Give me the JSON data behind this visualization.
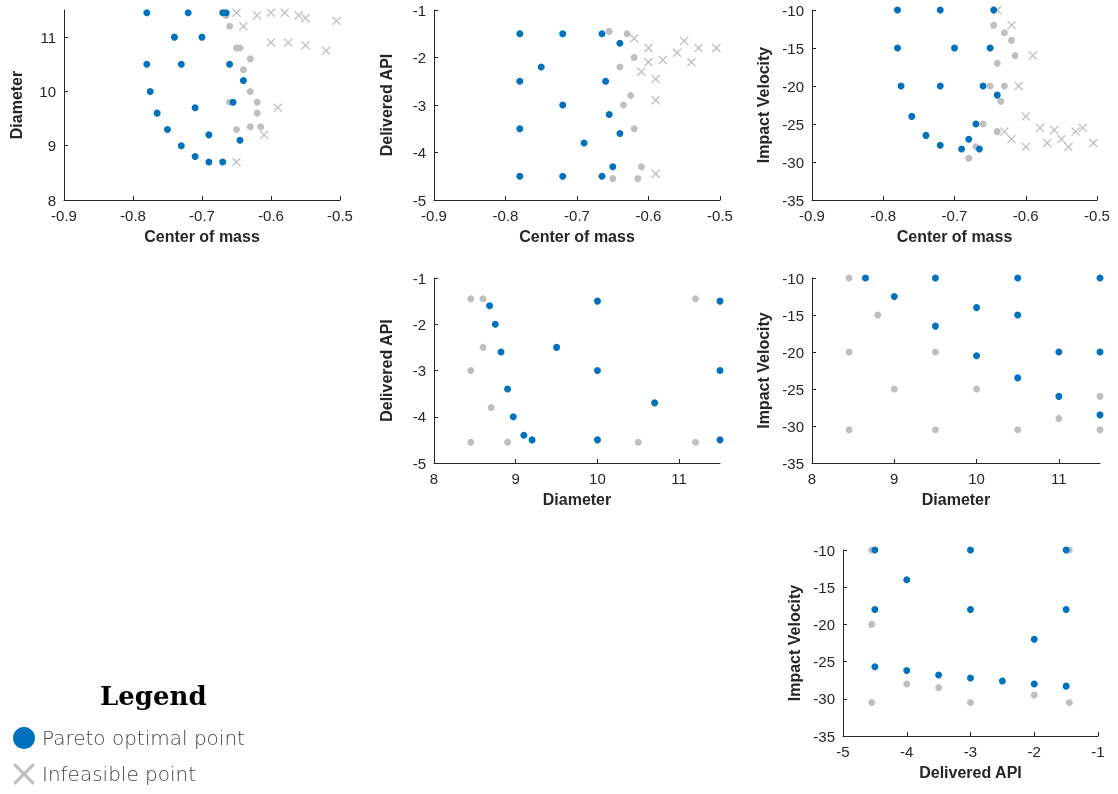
{
  "chart_data": [
    {
      "type": "scatter",
      "xlabel": "Center of mass",
      "ylabel": "Diameter",
      "xlim": [
        -0.9,
        -0.5
      ],
      "xticks": [
        -0.9,
        -0.8,
        -0.7,
        -0.6,
        -0.5
      ],
      "ylim": [
        8,
        11.5
      ],
      "yticks": [
        8,
        9,
        10,
        11
      ],
      "legend": "bottom left",
      "legend_title": "Legend",
      "series": [
        {
          "color": "#bfbfbf",
          "marker": "circle",
          "x": [
            -0.665,
            -0.66,
            -0.65,
            -0.64,
            -0.63,
            -0.62,
            -0.615,
            -0.63,
            -0.65,
            -0.66,
            -0.645,
            -0.63,
            -0.62
          ],
          "values": [
            11.4,
            11.2,
            10.8,
            10.4,
            10,
            9.6,
            9.35,
            9.35,
            9.3,
            9.8,
            10.8,
            10.6,
            9.8
          ]
        },
        {
          "name": "Infeasible point",
          "color": "#bfbfbf",
          "marker": "cross",
          "x": [
            -0.65,
            -0.62,
            -0.6,
            -0.58,
            -0.56,
            -0.55,
            -0.505,
            -0.52,
            -0.55,
            -0.575,
            -0.59,
            -0.6,
            -0.64,
            -0.65,
            -0.61
          ],
          "values": [
            11.45,
            11.4,
            11.45,
            11.45,
            11.4,
            11.35,
            11.3,
            10.75,
            10.85,
            10.9,
            9.7,
            10.9,
            11.2,
            8.7,
            9.2
          ]
        },
        {
          "name": "Pareto optimal point",
          "color": "#0072bd",
          "marker": "circle",
          "x": [
            -0.78,
            -0.72,
            -0.67,
            -0.78,
            -0.775,
            -0.765,
            -0.75,
            -0.73,
            -0.71,
            -0.69,
            -0.67,
            -0.66,
            -0.655,
            -0.645,
            -0.64,
            -0.73,
            -0.71,
            -0.74,
            -0.7,
            -0.69,
            -0.665
          ],
          "values": [
            11.45,
            11.45,
            11.45,
            10.5,
            10,
            9.6,
            9.3,
            9,
            8.8,
            8.7,
            8.7,
            10.5,
            9.8,
            9.1,
            10.2,
            10.5,
            9.7,
            11,
            11,
            9.2,
            11.45
          ]
        }
      ]
    },
    {
      "type": "scatter",
      "xlabel": "Center of mass",
      "ylabel": "Delivered API",
      "xlim": [
        -0.9,
        -0.5
      ],
      "xticks": [
        -0.9,
        -0.8,
        -0.7,
        -0.6,
        -0.5
      ],
      "ylim": [
        -5,
        -1
      ],
      "yticks": [
        -5,
        -4,
        -3,
        -2,
        -1
      ],
      "series": [
        {
          "color": "#bfbfbf",
          "marker": "circle",
          "x": [
            -0.655,
            -0.63,
            -0.62,
            -0.625,
            -0.62,
            -0.61,
            -0.615,
            -0.65,
            -0.635,
            -0.64
          ],
          "values": [
            -1.45,
            -1.5,
            -2,
            -2.8,
            -3.5,
            -4.3,
            -4.55,
            -4.55,
            -3,
            -2.2
          ]
        },
        {
          "color": "#bfbfbf",
          "marker": "cross",
          "x": [
            -0.62,
            -0.6,
            -0.58,
            -0.56,
            -0.55,
            -0.53,
            -0.505,
            -0.54,
            -0.59,
            -0.59,
            -0.59,
            -0.61,
            -0.6
          ],
          "values": [
            -1.6,
            -1.8,
            -2.05,
            -1.9,
            -1.65,
            -1.8,
            -1.8,
            -2.1,
            -2.45,
            -2.9,
            -4.45,
            -2.3,
            -2.1
          ]
        },
        {
          "color": "#0072bd",
          "marker": "circle",
          "x": [
            -0.78,
            -0.78,
            -0.78,
            -0.78,
            -0.72,
            -0.72,
            -0.665,
            -0.665,
            -0.66,
            -0.655,
            -0.65,
            -0.64,
            -0.64,
            -0.72,
            -0.75,
            -0.69
          ],
          "values": [
            -1.5,
            -2.5,
            -3.5,
            -4.5,
            -1.5,
            -4.5,
            -1.5,
            -4.5,
            -2.5,
            -3.2,
            -4.3,
            -1.7,
            -3.6,
            -3,
            -2.2,
            -3.8
          ]
        }
      ]
    },
    {
      "type": "scatter",
      "xlabel": "Center of mass",
      "ylabel": "Impact Velocity",
      "xlim": [
        -0.9,
        -0.5
      ],
      "xticks": [
        -0.9,
        -0.8,
        -0.7,
        -0.6,
        -0.5
      ],
      "ylim": [
        -35,
        -10
      ],
      "yticks": [
        -35,
        -30,
        -25,
        -20,
        -15,
        -10
      ],
      "series": [
        {
          "color": "#bfbfbf",
          "marker": "circle",
          "x": [
            -0.645,
            -0.63,
            -0.62,
            -0.615,
            -0.63,
            -0.66,
            -0.68,
            -0.67,
            -0.65,
            -0.64,
            -0.635,
            -0.64
          ],
          "values": [
            -12,
            -13,
            -14,
            -16,
            -20,
            -25,
            -29.5,
            -28,
            -20,
            -17,
            -22,
            -26
          ]
        },
        {
          "color": "#bfbfbf",
          "marker": "cross",
          "x": [
            -0.64,
            -0.62,
            -0.59,
            -0.61,
            -0.6,
            -0.58,
            -0.57,
            -0.55,
            -0.54,
            -0.53,
            -0.52,
            -0.505,
            -0.6,
            -0.62,
            -0.63,
            -0.56
          ],
          "values": [
            -10,
            -12,
            -16,
            -20,
            -24,
            -25.5,
            -27.5,
            -27,
            -28,
            -26,
            -25.5,
            -27.5,
            -28,
            -27,
            -26,
            -25.8
          ]
        },
        {
          "color": "#0072bd",
          "marker": "circle",
          "x": [
            -0.78,
            -0.72,
            -0.645,
            -0.78,
            -0.775,
            -0.76,
            -0.74,
            -0.72,
            -0.69,
            -0.68,
            -0.67,
            -0.66,
            -0.65,
            -0.72,
            -0.7,
            -0.64,
            -0.665
          ],
          "values": [
            -10,
            -10,
            -10,
            -15,
            -20,
            -24,
            -26.5,
            -27.8,
            -28.3,
            -27,
            -25,
            -20,
            -15,
            -20,
            -15,
            -21.2,
            -28.3
          ]
        }
      ]
    },
    {
      "type": "scatter",
      "xlabel": "Diameter",
      "ylabel": "Delivered API",
      "xlim": [
        8,
        11.5
      ],
      "xticks": [
        8,
        9,
        10,
        11
      ],
      "ylim": [
        -5,
        -1
      ],
      "yticks": [
        -5,
        -4,
        -3,
        -2,
        -1
      ],
      "series": [
        {
          "color": "#bfbfbf",
          "marker": "circle",
          "x": [
            8.45,
            8.45,
            8.45,
            8.6,
            8.7,
            8.9,
            8.6,
            11.2,
            11.2,
            10.5
          ],
          "values": [
            -1.45,
            -3,
            -4.55,
            -2.5,
            -3.8,
            -4.55,
            -1.45,
            -1.45,
            -4.55,
            -4.55
          ]
        },
        {
          "color": "#0072bd",
          "marker": "circle",
          "x": [
            8.68,
            8.75,
            8.82,
            8.9,
            8.97,
            9.1,
            9.2,
            11.5,
            11.5,
            10,
            10,
            10,
            11.5,
            9.5,
            10.7
          ],
          "values": [
            -1.6,
            -2,
            -2.6,
            -3.4,
            -4,
            -4.4,
            -4.5,
            -1.5,
            -4.5,
            -1.5,
            -4.5,
            -3,
            -3,
            -2.5,
            -3.7
          ]
        }
      ]
    },
    {
      "type": "scatter",
      "xlabel": "Diameter",
      "ylabel": "Impact Velocity",
      "xlim": [
        8,
        11.5
      ],
      "xticks": [
        8,
        9,
        10,
        11
      ],
      "ylim": [
        -35,
        -10
      ],
      "yticks": [
        -35,
        -30,
        -25,
        -20,
        -15,
        -10
      ],
      "series": [
        {
          "color": "#bfbfbf",
          "marker": "circle",
          "x": [
            8.45,
            8.45,
            8.45,
            9,
            9.5,
            10,
            10.5,
            11.5,
            11.5,
            8.8,
            9.5,
            11
          ],
          "values": [
            -10,
            -20,
            -30.5,
            -25,
            -30.5,
            -25,
            -30.5,
            -30.5,
            -26,
            -15,
            -20,
            -29
          ]
        },
        {
          "color": "#0072bd",
          "marker": "circle",
          "x": [
            8.65,
            9.5,
            10.5,
            11.5,
            9,
            9.5,
            10,
            10.5,
            11,
            11.5,
            11.5,
            10.5,
            11,
            10
          ],
          "values": [
            -10,
            -10,
            -10,
            -10,
            -12.5,
            -16.5,
            -20.5,
            -23.5,
            -26,
            -28.5,
            -20,
            -15,
            -20,
            -14
          ]
        }
      ]
    },
    {
      "type": "scatter",
      "xlabel": "Delivered API",
      "ylabel": "Impact Velocity",
      "xlim": [
        -5,
        -1
      ],
      "xticks": [
        -5,
        -4,
        -3,
        -2,
        -1
      ],
      "ylim": [
        -35,
        -10
      ],
      "yticks": [
        -35,
        -30,
        -25,
        -20,
        -15,
        -10
      ],
      "series": [
        {
          "color": "#bfbfbf",
          "marker": "circle",
          "x": [
            -4.55,
            -4.55,
            -4.55,
            -3,
            -1.45,
            -1.45,
            -3.5,
            -2,
            -4
          ],
          "values": [
            -10,
            -20,
            -30.5,
            -30.5,
            -30.5,
            -10,
            -28.5,
            -29.5,
            -28
          ]
        },
        {
          "color": "#0072bd",
          "marker": "circle",
          "x": [
            -4.5,
            -3,
            -1.5,
            -4.5,
            -1.5,
            -4.5,
            -4,
            -3.5,
            -3,
            -2.5,
            -2,
            -1.5,
            -3,
            -2,
            -4
          ],
          "values": [
            -10,
            -10,
            -10,
            -18,
            -18,
            -25.7,
            -26.2,
            -26.8,
            -27.2,
            -27.6,
            -28,
            -28.3,
            -18,
            -22,
            -14
          ]
        }
      ]
    }
  ]
}
